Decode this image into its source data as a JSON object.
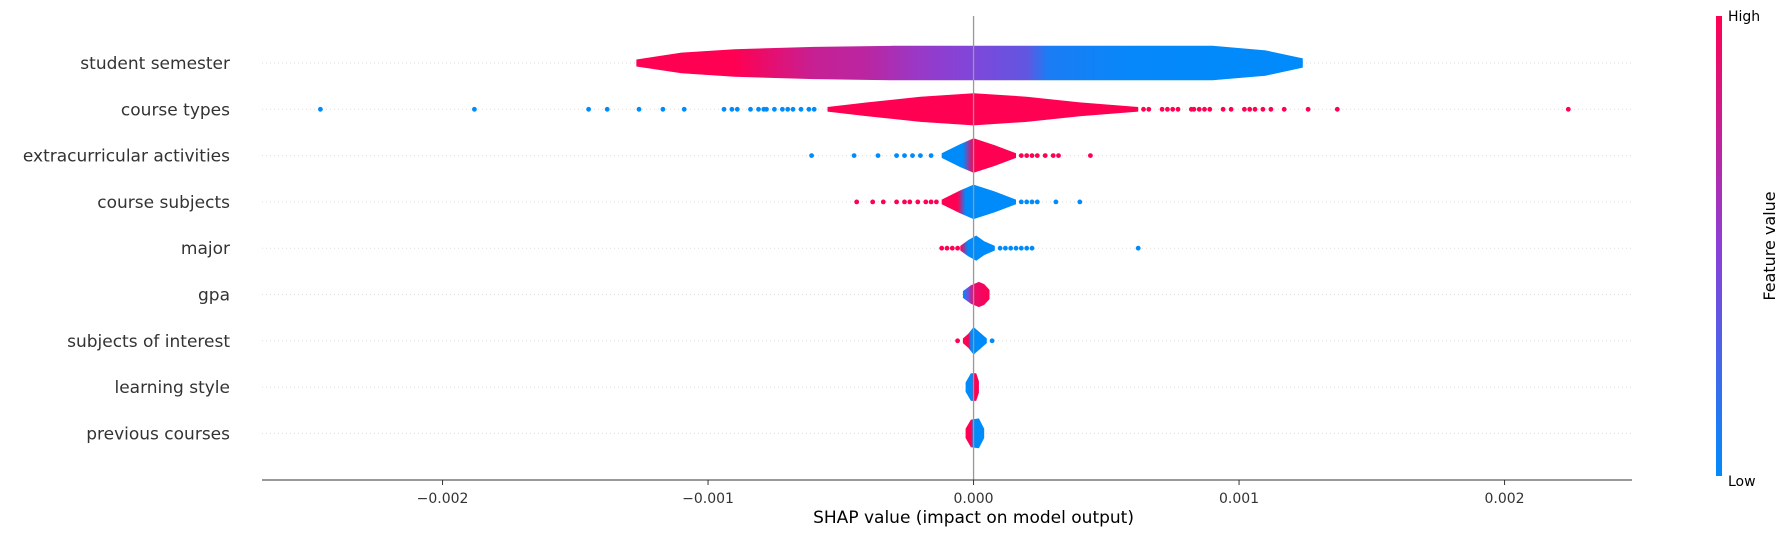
{
  "chart_data": {
    "type": "scatter",
    "subtype": "shap-summary-violin",
    "title": "",
    "xlabel": "SHAP value (impact on model output)",
    "ylabel": "",
    "xlim": [
      -0.00268,
      0.00248
    ],
    "x_ticks": [
      -0.002,
      -0.001,
      0.0,
      0.001,
      0.002
    ],
    "x_tick_labels": [
      "−0.002",
      "−0.001",
      "0.000",
      "0.001",
      "0.002"
    ],
    "grid": "dotted horizontal lines per feature",
    "zero_line": true,
    "colors": {
      "low": "#008bfb",
      "mid": "#8c3fd6",
      "high": "#ff0052",
      "zero_line": "#999999",
      "axis": "#333333"
    },
    "colorbar": {
      "title": "Feature value",
      "high_label": "High",
      "low_label": "Low",
      "placement": "right"
    },
    "features": [
      {
        "name": "student semester",
        "min": -0.00127,
        "max": 0.00124,
        "violin": [
          [
            -0.00127,
            3
          ],
          [
            -0.0011,
            9
          ],
          [
            -0.0009,
            12
          ],
          [
            -0.0006,
            14
          ],
          [
            -0.0003,
            15
          ],
          [
            0.0,
            15
          ],
          [
            0.0003,
            15
          ],
          [
            0.0006,
            15
          ],
          [
            0.0009,
            15
          ],
          [
            0.0011,
            11
          ],
          [
            0.00124,
            4
          ]
        ],
        "color_stops": [
          [
            -0.00127,
            1
          ],
          [
            -0.0009,
            1
          ],
          [
            -0.0006,
            0.75
          ],
          [
            -0.0004,
            0.7
          ],
          [
            -0.0002,
            0.55
          ],
          [
            0.0,
            0.45
          ],
          [
            0.0002,
            0.35
          ],
          [
            0.00028,
            0.1
          ],
          [
            0.0006,
            0.02
          ],
          [
            0.00124,
            0
          ]
        ],
        "dots": []
      },
      {
        "name": "course types",
        "min": -0.00055,
        "max": 0.00062,
        "violin": [
          [
            -0.00055,
            2
          ],
          [
            -0.0004,
            6
          ],
          [
            -0.0002,
            11
          ],
          [
            0.0,
            14
          ],
          [
            0.0002,
            11
          ],
          [
            0.0004,
            6
          ],
          [
            0.00062,
            2
          ]
        ],
        "color_stops": [
          [
            -0.00055,
            1
          ],
          [
            0.00062,
            1
          ]
        ],
        "dots": [
          {
            "x": -0.00246,
            "c": 0
          },
          {
            "x": -0.00188,
            "c": 0
          },
          {
            "x": -0.00145,
            "c": 0
          },
          {
            "x": -0.00138,
            "c": 0
          },
          {
            "x": -0.00126,
            "c": 0
          },
          {
            "x": -0.00117,
            "c": 0
          },
          {
            "x": -0.00109,
            "c": 0
          },
          {
            "x": -0.00094,
            "c": 0
          },
          {
            "x": -0.00091,
            "c": 0
          },
          {
            "x": -0.00089,
            "c": 0
          },
          {
            "x": -0.00084,
            "c": 0
          },
          {
            "x": -0.00081,
            "c": 0
          },
          {
            "x": -0.00079,
            "c": 0
          },
          {
            "x": -0.00078,
            "c": 0
          },
          {
            "x": -0.00075,
            "c": 0
          },
          {
            "x": -0.00072,
            "c": 0
          },
          {
            "x": -0.0007,
            "c": 0
          },
          {
            "x": -0.00068,
            "c": 0
          },
          {
            "x": -0.00065,
            "c": 0
          },
          {
            "x": -0.00062,
            "c": 0
          },
          {
            "x": -0.0006,
            "c": 0
          },
          {
            "x": 0.00064,
            "c": 1
          },
          {
            "x": 0.00066,
            "c": 1
          },
          {
            "x": 0.00071,
            "c": 1
          },
          {
            "x": 0.00073,
            "c": 1
          },
          {
            "x": 0.00075,
            "c": 1
          },
          {
            "x": 0.00077,
            "c": 1
          },
          {
            "x": 0.00082,
            "c": 1
          },
          {
            "x": 0.00083,
            "c": 1
          },
          {
            "x": 0.00085,
            "c": 1
          },
          {
            "x": 0.00087,
            "c": 1
          },
          {
            "x": 0.00089,
            "c": 1
          },
          {
            "x": 0.00094,
            "c": 1
          },
          {
            "x": 0.00097,
            "c": 1
          },
          {
            "x": 0.00102,
            "c": 1
          },
          {
            "x": 0.00104,
            "c": 1
          },
          {
            "x": 0.00106,
            "c": 1
          },
          {
            "x": 0.00109,
            "c": 1
          },
          {
            "x": 0.00112,
            "c": 1
          },
          {
            "x": 0.00117,
            "c": 1
          },
          {
            "x": 0.00126,
            "c": 1
          },
          {
            "x": 0.00137,
            "c": 1
          },
          {
            "x": 0.00224,
            "c": 1
          }
        ]
      },
      {
        "name": "extracurricular activities",
        "min": -0.00012,
        "max": 0.00016,
        "violin": [
          [
            -0.00012,
            2
          ],
          [
            -5e-05,
            10
          ],
          [
            0.0,
            15
          ],
          [
            8e-05,
            9
          ],
          [
            0.00016,
            2
          ]
        ],
        "color_stops": [
          [
            -0.00012,
            0
          ],
          [
            -4e-05,
            0
          ],
          [
            0.0,
            1
          ],
          [
            0.00016,
            1
          ]
        ],
        "dots": [
          {
            "x": -0.00061,
            "c": 0
          },
          {
            "x": -0.00045,
            "c": 0
          },
          {
            "x": -0.00036,
            "c": 0
          },
          {
            "x": -0.00029,
            "c": 0
          },
          {
            "x": -0.00026,
            "c": 0
          },
          {
            "x": -0.00023,
            "c": 0
          },
          {
            "x": -0.0002,
            "c": 0
          },
          {
            "x": -0.00016,
            "c": 0
          },
          {
            "x": 0.00018,
            "c": 1
          },
          {
            "x": 0.0002,
            "c": 1
          },
          {
            "x": 0.00022,
            "c": 1
          },
          {
            "x": 0.00024,
            "c": 1
          },
          {
            "x": 0.00027,
            "c": 1
          },
          {
            "x": 0.0003,
            "c": 1
          },
          {
            "x": 0.00032,
            "c": 1
          },
          {
            "x": 0.00044,
            "c": 1
          }
        ]
      },
      {
        "name": "course subjects",
        "min": -0.00012,
        "max": 0.00016,
        "violin": [
          [
            -0.00012,
            2
          ],
          [
            -5e-05,
            10
          ],
          [
            0.0,
            15
          ],
          [
            8e-05,
            9
          ],
          [
            0.00016,
            2
          ]
        ],
        "color_stops": [
          [
            -0.00012,
            1
          ],
          [
            -6e-05,
            1
          ],
          [
            -3e-05,
            0
          ],
          [
            0.00016,
            0
          ]
        ],
        "dots": [
          {
            "x": -0.00044,
            "c": 1
          },
          {
            "x": -0.00038,
            "c": 1
          },
          {
            "x": -0.00034,
            "c": 1
          },
          {
            "x": -0.00029,
            "c": 1
          },
          {
            "x": -0.00026,
            "c": 1
          },
          {
            "x": -0.00024,
            "c": 1
          },
          {
            "x": -0.00021,
            "c": 1
          },
          {
            "x": -0.00018,
            "c": 1
          },
          {
            "x": -0.00016,
            "c": 1
          },
          {
            "x": -0.00014,
            "c": 1
          },
          {
            "x": 0.00018,
            "c": 0
          },
          {
            "x": 0.0002,
            "c": 0
          },
          {
            "x": 0.00022,
            "c": 0
          },
          {
            "x": 0.00024,
            "c": 0
          },
          {
            "x": 0.00031,
            "c": 0
          },
          {
            "x": 0.0004,
            "c": 0
          }
        ]
      },
      {
        "name": "major",
        "min": -5e-05,
        "max": 8e-05,
        "violin": [
          [
            -5e-05,
            2
          ],
          [
            -2e-05,
            7
          ],
          [
            1e-05,
            11
          ],
          [
            4e-05,
            6
          ],
          [
            8e-05,
            2
          ]
        ],
        "color_stops": [
          [
            -5e-05,
            1
          ],
          [
            -2e-05,
            0
          ],
          [
            8e-05,
            0
          ]
        ],
        "dots": [
          {
            "x": -0.00012,
            "c": 1
          },
          {
            "x": -0.0001,
            "c": 1
          },
          {
            "x": -8e-05,
            "c": 1
          },
          {
            "x": -6e-05,
            "c": 1
          },
          {
            "x": 0.0001,
            "c": 0
          },
          {
            "x": 0.00012,
            "c": 0
          },
          {
            "x": 0.00014,
            "c": 0
          },
          {
            "x": 0.00016,
            "c": 0
          },
          {
            "x": 0.00018,
            "c": 0
          },
          {
            "x": 0.0002,
            "c": 0
          },
          {
            "x": 0.00022,
            "c": 0
          },
          {
            "x": 0.00062,
            "c": 0
          }
        ]
      },
      {
        "name": "gpa",
        "min": -4e-05,
        "max": 6e-05,
        "violin": [
          [
            -4e-05,
            3
          ],
          [
            -1e-05,
            8
          ],
          [
            2e-05,
            11
          ],
          [
            4e-05,
            9
          ],
          [
            6e-05,
            4
          ]
        ],
        "color_stops": [
          [
            -4e-05,
            0
          ],
          [
            -2e-05,
            0.4
          ],
          [
            0.0,
            0.9
          ],
          [
            6e-05,
            1
          ]
        ],
        "dots": []
      },
      {
        "name": "subjects of interest",
        "min": -4e-05,
        "max": 5e-05,
        "violin": [
          [
            -4e-05,
            2
          ],
          [
            -2e-05,
            6
          ],
          [
            0.0,
            12
          ],
          [
            3e-05,
            6
          ],
          [
            5e-05,
            2
          ]
        ],
        "color_stops": [
          [
            -4e-05,
            1
          ],
          [
            -2e-05,
            1
          ],
          [
            -1e-05,
            0
          ],
          [
            5e-05,
            0
          ]
        ],
        "dots": [
          {
            "x": -6e-05,
            "c": 1
          },
          {
            "x": 7e-05,
            "c": 0
          }
        ]
      },
      {
        "name": "learning style",
        "min": -3e-05,
        "max": 2e-05,
        "violin": [
          [
            -3e-05,
            4
          ],
          [
            -1e-05,
            12
          ],
          [
            1e-05,
            12
          ],
          [
            2e-05,
            5
          ]
        ],
        "color_stops": [
          [
            -3e-05,
            0
          ],
          [
            -5e-06,
            0
          ],
          [
            0.0,
            1
          ],
          [
            2e-05,
            1
          ]
        ],
        "dots": []
      },
      {
        "name": "previous courses",
        "min": -3e-05,
        "max": 4e-05,
        "violin": [
          [
            -3e-05,
            4
          ],
          [
            -1e-05,
            12
          ],
          [
            2e-05,
            13
          ],
          [
            4e-05,
            4
          ]
        ],
        "color_stops": [
          [
            -3e-05,
            1
          ],
          [
            -1e-05,
            1
          ],
          [
            0.0,
            0
          ],
          [
            4e-05,
            0
          ]
        ],
        "dots": []
      }
    ]
  }
}
